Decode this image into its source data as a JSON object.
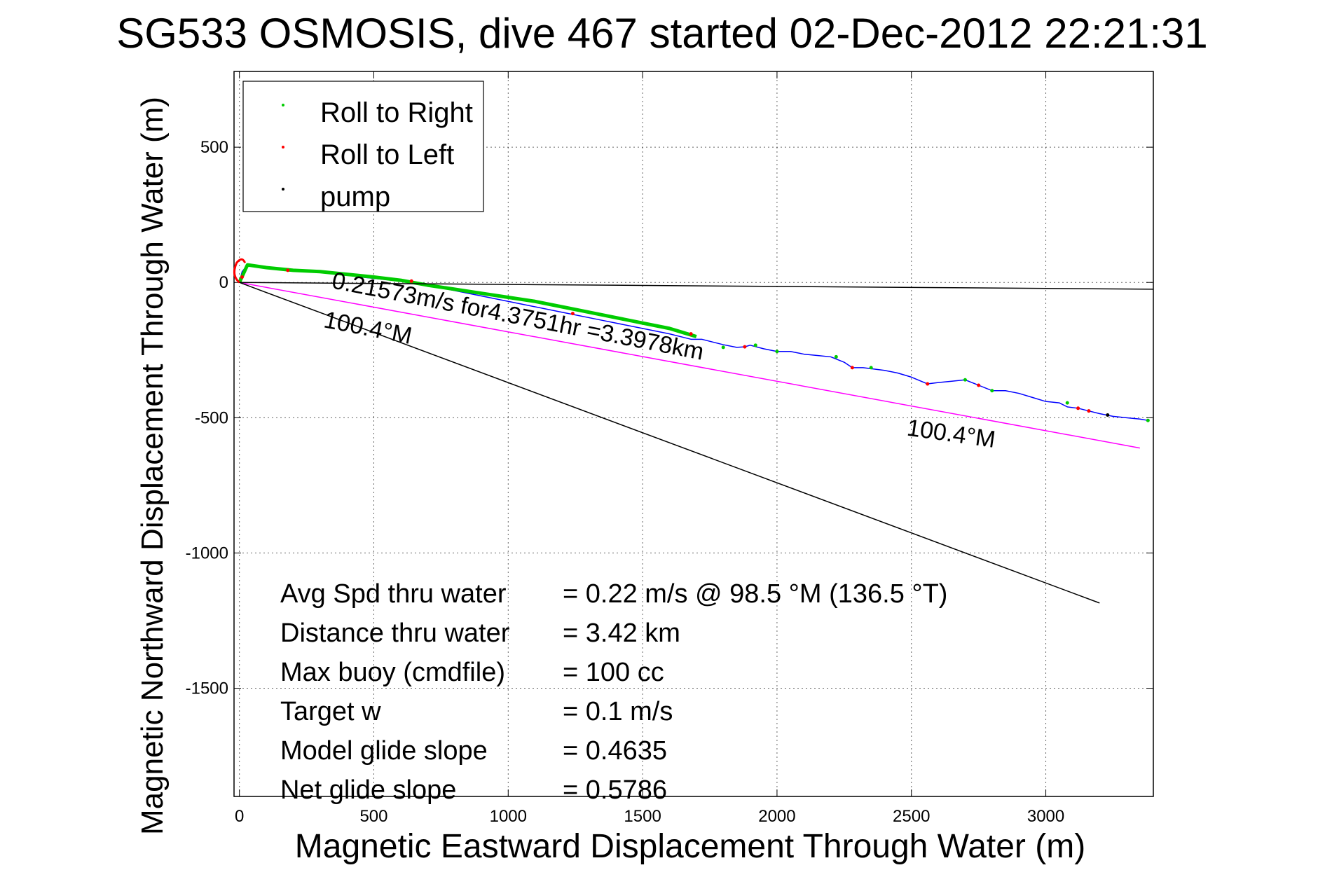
{
  "chart_data": {
    "type": "line",
    "title": "SG533 OSMOSIS, dive 467 started 02-Dec-2012 22:21:31",
    "xlabel": "Magnetic Eastward Displacement Through Water (m)",
    "ylabel": "Magnetic Northward Displacement Through Water (m)",
    "xlim": [
      -20,
      3400
    ],
    "ylim": [
      -1900,
      780
    ],
    "xticks": [
      0,
      500,
      1000,
      1500,
      2000,
      2500,
      3000
    ],
    "yticks": [
      -1500,
      -1000,
      -500,
      0,
      500
    ],
    "grid": true,
    "legend_position": "top-left",
    "legend": [
      {
        "label": "Roll to Right",
        "color": "#00cc00"
      },
      {
        "label": "Roll to Left",
        "color": "#ff0000"
      },
      {
        "label": "pump",
        "color": "#000000"
      }
    ],
    "series": [
      {
        "name": "",
        "color": "#0000ff",
        "x": [
          0,
          10,
          30,
          60,
          150,
          300,
          450,
          600,
          750,
          900,
          1050,
          1200,
          1350,
          1500,
          1600,
          1680,
          1720,
          1800,
          1850,
          1880,
          1900,
          1950,
          2000,
          2050,
          2100,
          2150,
          2200,
          2250,
          2280,
          2320,
          2400,
          2450,
          2500,
          2560,
          2600,
          2650,
          2700,
          2750,
          2800,
          2850,
          2900,
          2950,
          3000,
          3050,
          3080,
          3120,
          3160,
          3200,
          3250,
          3300,
          3350,
          3380
        ],
        "y": [
          0,
          40,
          65,
          60,
          50,
          40,
          20,
          5,
          -20,
          -50,
          -80,
          -110,
          -140,
          -170,
          -190,
          -210,
          -210,
          -230,
          -240,
          -238,
          -232,
          -245,
          -255,
          -255,
          -265,
          -270,
          -275,
          -295,
          -315,
          -315,
          -325,
          -335,
          -350,
          -375,
          -370,
          -365,
          -360,
          -380,
          -400,
          -400,
          -410,
          -425,
          -440,
          -445,
          -460,
          -465,
          -475,
          -485,
          -495,
          -500,
          -505,
          -510
        ]
      },
      {
        "name": "",
        "color": "#00cc00",
        "x": [
          0,
          30,
          100,
          200,
          300,
          400,
          500,
          600,
          700,
          800,
          900,
          1000,
          1100,
          1200,
          1300,
          1400,
          1500,
          1600,
          1650,
          1700
        ],
        "y": [
          0,
          65,
          55,
          45,
          40,
          30,
          20,
          8,
          -10,
          -25,
          -40,
          -55,
          -70,
          -90,
          -110,
          -130,
          -150,
          -170,
          -185,
          -200
        ]
      },
      {
        "name": "",
        "color": "#ff00ff",
        "x": [
          0,
          3350
        ],
        "y": [
          0,
          -612
        ]
      },
      {
        "name": "",
        "color": "#000000",
        "x": [
          0,
          3200
        ],
        "y": [
          0,
          -1185
        ]
      },
      {
        "name": "",
        "color": "#000000",
        "x": [
          0,
          3400
        ],
        "y": [
          0,
          -25
        ]
      }
    ],
    "points": [
      {
        "x": 1680,
        "y": -190,
        "color": "#ff0000"
      },
      {
        "x": 1800,
        "y": -240,
        "color": "#00cc00"
      },
      {
        "x": 1880,
        "y": -238,
        "color": "#ff0000"
      },
      {
        "x": 1920,
        "y": -232,
        "color": "#00cc00"
      },
      {
        "x": 2000,
        "y": -255,
        "color": "#00cc00"
      },
      {
        "x": 2220,
        "y": -275,
        "color": "#00cc00"
      },
      {
        "x": 2280,
        "y": -315,
        "color": "#ff0000"
      },
      {
        "x": 2350,
        "y": -315,
        "color": "#00cc00"
      },
      {
        "x": 2560,
        "y": -375,
        "color": "#ff0000"
      },
      {
        "x": 2700,
        "y": -360,
        "color": "#00cc00"
      },
      {
        "x": 2750,
        "y": -380,
        "color": "#ff0000"
      },
      {
        "x": 2800,
        "y": -400,
        "color": "#00cc00"
      },
      {
        "x": 3080,
        "y": -445,
        "color": "#00cc00"
      },
      {
        "x": 3120,
        "y": -465,
        "color": "#ff0000"
      },
      {
        "x": 3160,
        "y": -475,
        "color": "#ff0000"
      },
      {
        "x": 3230,
        "y": -490,
        "color": "#000000"
      },
      {
        "x": 3380,
        "y": -510,
        "color": "#00cc00"
      },
      {
        "x": 180,
        "y": 45,
        "color": "#ff0000"
      },
      {
        "x": 640,
        "y": 5,
        "color": "#ff0000"
      },
      {
        "x": 1240,
        "y": -115,
        "color": "#ff0000"
      },
      {
        "x": 10,
        "y": 20,
        "color": "#ff0000"
      }
    ],
    "annotations": [
      {
        "text": "0.21573m/s for4.3751hr =3.3978km",
        "x": 340,
        "y": -20,
        "rotate": 11
      },
      {
        "text": "100.4°M",
        "x": 310,
        "y": -165,
        "rotate": 11
      },
      {
        "text": "100.4°M",
        "x": 2480,
        "y": -565,
        "rotate": 8
      }
    ],
    "stats": [
      {
        "label": "Avg Spd thru water",
        "value": "=  0.22 m/s @  98.5 °M (136.5 °T)"
      },
      {
        "label": "Distance thru water",
        "value": "=  3.42 km"
      },
      {
        "label": "Max buoy (cmdfile)",
        "value": "= 100 cc"
      },
      {
        "label": "Target w",
        "value": "= 0.1 m/s"
      },
      {
        "label": "Model glide slope",
        "value": "= 0.4635"
      },
      {
        "label": "Net glide slope",
        "value": "= 0.5786"
      }
    ]
  }
}
